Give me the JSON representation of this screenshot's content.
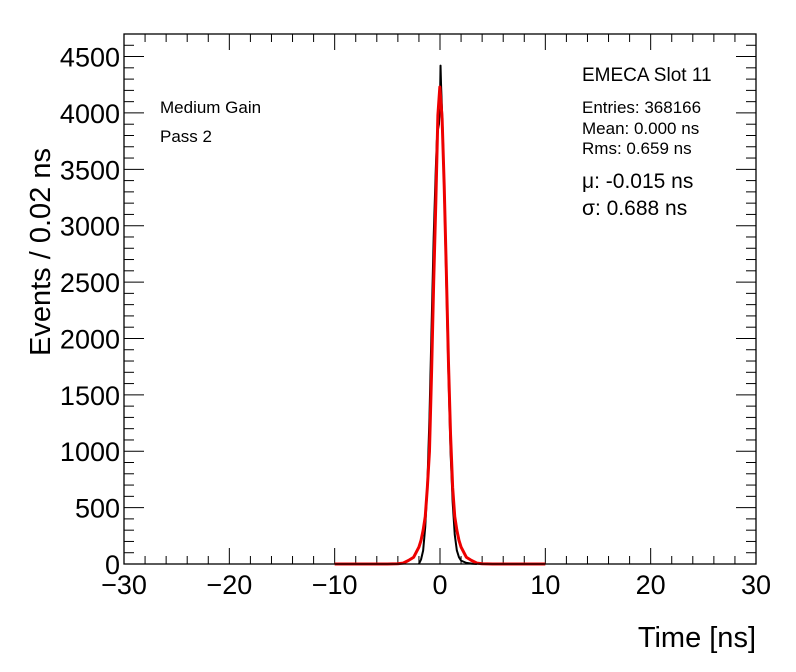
{
  "chart_data": {
    "type": "line",
    "xlabel": "Time [ns]",
    "ylabel": "Events / 0.02 ns",
    "xlim": [
      -30,
      30
    ],
    "ylim": [
      0,
      4700
    ],
    "x_ticks": [
      "−30",
      "−20",
      "−10",
      "0",
      "10",
      "20",
      "30"
    ],
    "x_tick_values": [
      -30,
      -20,
      -10,
      0,
      10,
      20,
      30
    ],
    "y_ticks": [
      "0",
      "500",
      "1000",
      "1500",
      "2000",
      "2500",
      "3000",
      "3500",
      "4000",
      "4500"
    ],
    "y_tick_values": [
      0,
      500,
      1000,
      1500,
      2000,
      2500,
      3000,
      3500,
      4000,
      4500
    ],
    "grid": false,
    "series": [
      {
        "color": "#000000",
        "x": [
          -2.0,
          -1.8,
          -1.6,
          -1.4,
          -1.2,
          -1.0,
          -0.8,
          -0.6,
          -0.4,
          -0.3,
          -0.2,
          -0.1,
          0.0,
          0.05,
          0.1,
          0.2,
          0.3,
          0.4,
          0.6,
          0.8,
          1.0,
          1.2,
          1.4,
          1.6,
          1.8,
          2.0,
          2.5,
          3.0,
          3.5
        ],
        "values": [
          0,
          40,
          120,
          330,
          700,
          1300,
          2100,
          2900,
          3500,
          3750,
          3850,
          3900,
          4100,
          4420,
          4250,
          4000,
          3700,
          3300,
          2500,
          1700,
          1000,
          550,
          260,
          120,
          60,
          30,
          10,
          3,
          0
        ]
      },
      {
        "color": "#ee0000",
        "x": [
          -10,
          -9,
          -8,
          -7,
          -6,
          -5,
          -4,
          -3.5,
          -3,
          -2.5,
          -2,
          -1.8,
          -1.6,
          -1.4,
          -1.2,
          -1.0,
          -0.8,
          -0.6,
          -0.4,
          -0.2,
          -0.015,
          0.2,
          0.4,
          0.6,
          0.8,
          1.0,
          1.2,
          1.4,
          1.6,
          1.8,
          2.0,
          2.5,
          3,
          3.5,
          4,
          5,
          6,
          7,
          8,
          9,
          10
        ],
        "values": [
          0,
          0,
          0,
          0,
          0,
          0,
          2,
          8,
          31,
          60,
          150,
          210,
          300,
          420,
          680,
          1000,
          1700,
          2500,
          3200,
          3980,
          4230,
          3950,
          3350,
          2600,
          1800,
          1150,
          680,
          420,
          300,
          210,
          150,
          60,
          31,
          8,
          2,
          0,
          0,
          0,
          0,
          0,
          0
        ]
      }
    ],
    "annotations": {
      "left_line1": "Medium Gain",
      "left_line2": "Pass 2",
      "stats_title": "EMECA Slot 11",
      "entries": "Entries: 368166",
      "mean": "Mean: 0.000 ns",
      "rms": "Rms: 0.659 ns",
      "mu": "μ: -0.015 ns",
      "sigma": "σ: 0.688 ns"
    }
  }
}
